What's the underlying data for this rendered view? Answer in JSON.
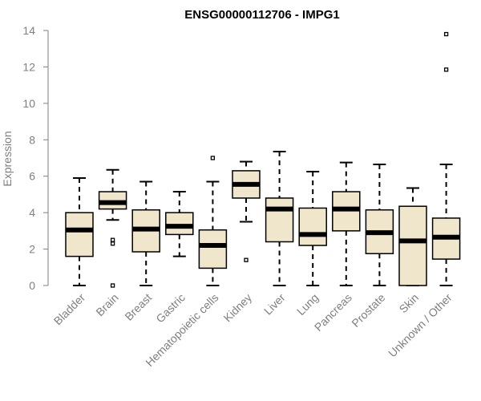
{
  "chart_data": {
    "type": "boxplot",
    "title": "ENSG00000112706 - IMPG1",
    "xlabel": "",
    "ylabel": "Expression",
    "ylim": [
      0,
      14
    ],
    "yticks": [
      0,
      2,
      4,
      6,
      8,
      10,
      12,
      14
    ],
    "grid": false,
    "legend": "none",
    "colors": {
      "box_fill": "#efe6cc",
      "stroke": "#000000",
      "axis": "#7f7f7f"
    },
    "categories": [
      "Bladder",
      "Brain",
      "Breast",
      "Gastric",
      "Hematopoietic cells",
      "Kidney",
      "Liver",
      "Lung",
      "Pancreas",
      "Prostate",
      "Skin",
      "Unknown / Other"
    ],
    "boxes": [
      {
        "category": "Bladder",
        "min": 0.0,
        "q1": 1.6,
        "median": 3.05,
        "q3": 4.0,
        "max": 5.9,
        "outliers": []
      },
      {
        "category": "Brain",
        "min": 3.6,
        "q1": 4.2,
        "median": 4.55,
        "q3": 5.15,
        "max": 6.35,
        "outliers": [
          2.5,
          2.3,
          0.0
        ]
      },
      {
        "category": "Breast",
        "min": 0.0,
        "q1": 1.85,
        "median": 3.1,
        "q3": 4.15,
        "max": 5.7,
        "outliers": []
      },
      {
        "category": "Gastric",
        "min": 1.6,
        "q1": 2.8,
        "median": 3.25,
        "q3": 4.0,
        "max": 5.15,
        "outliers": []
      },
      {
        "category": "Hematopoietic cells",
        "min": 0.0,
        "q1": 0.95,
        "median": 2.2,
        "q3": 3.05,
        "max": 5.7,
        "outliers": [
          7.0
        ]
      },
      {
        "category": "Kidney",
        "min": 3.5,
        "q1": 4.8,
        "median": 5.55,
        "q3": 6.3,
        "max": 6.8,
        "outliers": [
          1.4
        ]
      },
      {
        "category": "Liver",
        "min": 0.0,
        "q1": 2.4,
        "median": 4.2,
        "q3": 4.8,
        "max": 7.35,
        "outliers": []
      },
      {
        "category": "Lung",
        "min": 0.0,
        "q1": 2.2,
        "median": 2.8,
        "q3": 4.25,
        "max": 6.25,
        "outliers": []
      },
      {
        "category": "Pancreas",
        "min": 0.0,
        "q1": 3.0,
        "median": 4.2,
        "q3": 5.15,
        "max": 6.75,
        "outliers": []
      },
      {
        "category": "Prostate",
        "min": 0.0,
        "q1": 1.75,
        "median": 2.9,
        "q3": 4.15,
        "max": 6.65,
        "outliers": []
      },
      {
        "category": "Skin",
        "min": 0.0,
        "q1": 0.0,
        "median": 2.45,
        "q3": 4.35,
        "max": 5.35,
        "outliers": []
      },
      {
        "category": "Unknown / Other",
        "min": 0.0,
        "q1": 1.45,
        "median": 2.65,
        "q3": 3.7,
        "max": 6.65,
        "outliers": [
          11.85,
          13.8
        ]
      }
    ]
  }
}
